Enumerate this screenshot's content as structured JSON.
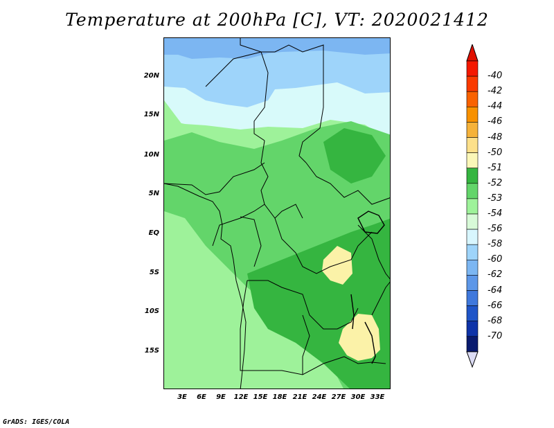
{
  "title": "Temperature at 200hPa [C], VT: 2020021412",
  "credit": "GrADS: IGES/COLA",
  "y_axis": {
    "ticks": [
      "20N",
      "15N",
      "10N",
      "5N",
      "EQ",
      "5S",
      "10S",
      "15S"
    ]
  },
  "x_axis": {
    "ticks": [
      "3E",
      "6E",
      "9E",
      "12E",
      "15E",
      "18E",
      "21E",
      "24E",
      "27E",
      "30E",
      "33E"
    ]
  },
  "legend": {
    "labels": [
      "-40",
      "-42",
      "-44",
      "-46",
      "-48",
      "-50",
      "-51",
      "-52",
      "-53",
      "-54",
      "-56",
      "-58",
      "-60",
      "-62",
      "-64",
      "-66",
      "-68",
      "-70"
    ],
    "colors": [
      "#f41800",
      "#fa3a00",
      "#f96200",
      "#f89100",
      "#f5b23a",
      "#fde08a",
      "#fbf7b8",
      "#35b540",
      "#63d56a",
      "#9ef29a",
      "#d8fad8",
      "#d8f6fe",
      "#9ed4fa",
      "#7cb6f2",
      "#5d97e8",
      "#3f78dc",
      "#1f55c8",
      "#0e33a8",
      "#091a6e"
    ],
    "end_colors": {
      "top": "#e01000",
      "bottom": "#dcdcf4"
    }
  },
  "colors": {
    "map_border": "#000000",
    "warm_patch": "#fbf2a8",
    "cold_light": "#9ed4fa",
    "cold_mid": "#7cb6f2"
  }
}
